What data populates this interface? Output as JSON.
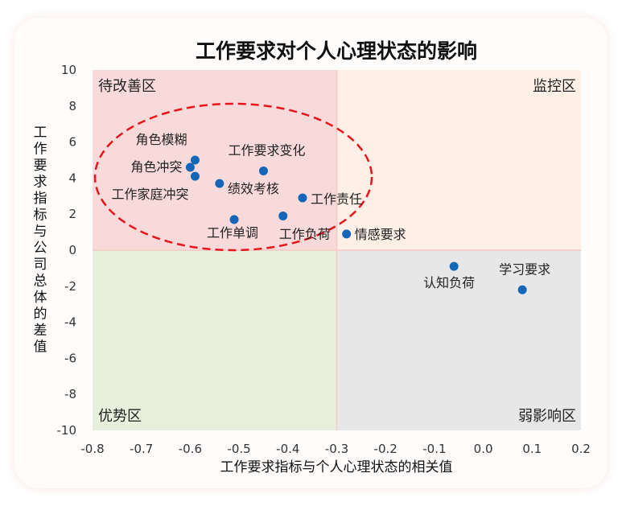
{
  "chart_data": {
    "type": "scatter",
    "title": "工作要求对个人心理状态的影响",
    "xlabel": "工作要求指标与个人心理状态的相关值",
    "ylabel": "工作要求指标与公司总体的差值",
    "xlim": [
      -0.8,
      0.2
    ],
    "ylim": [
      -10,
      10
    ],
    "xticks": [
      "-0.8",
      "-0.7",
      "-0.6",
      "-0.5",
      "-0.4",
      "-0.3",
      "-0.2",
      "-0.1",
      "0.0",
      "0.1",
      "0.2"
    ],
    "yticks": [
      "10",
      "8",
      "6",
      "4",
      "2",
      "0",
      "-2",
      "-4",
      "-6",
      "-8",
      "-10"
    ],
    "grid": false,
    "quadrant_split": {
      "x": -0.3,
      "y": 0
    },
    "quadrants": [
      {
        "label": "待改善区",
        "color": "#f9dada",
        "position": "top-left"
      },
      {
        "label": "监控区",
        "color": "#fef0e6",
        "position": "top-right"
      },
      {
        "label": "优势区",
        "color": "#e8efdc",
        "position": "bottom-left"
      },
      {
        "label": "弱影响区",
        "color": "#e7e7e7",
        "position": "bottom-right"
      }
    ],
    "highlight_ellipse": {
      "color": "#e8141b",
      "style": "dashed"
    },
    "point_color": "#1467b8",
    "points": [
      {
        "label": "角色模糊",
        "x": -0.59,
        "y": 5.0
      },
      {
        "label": "角色冲突",
        "x": -0.6,
        "y": 4.6
      },
      {
        "label": "工作家庭冲突",
        "x": -0.59,
        "y": 4.1
      },
      {
        "label": "工作要求变化",
        "x": -0.45,
        "y": 4.4
      },
      {
        "label": "绩效考核",
        "x": -0.54,
        "y": 3.7
      },
      {
        "label": "工作责任",
        "x": -0.37,
        "y": 2.9
      },
      {
        "label": "工作单调",
        "x": -0.51,
        "y": 1.7
      },
      {
        "label": "工作负荷",
        "x": -0.41,
        "y": 1.9
      },
      {
        "label": "情感要求",
        "x": -0.28,
        "y": 0.9
      },
      {
        "label": "认知负荷",
        "x": -0.06,
        "y": -0.9
      },
      {
        "label": "学习要求",
        "x": 0.08,
        "y": -2.2
      }
    ]
  }
}
